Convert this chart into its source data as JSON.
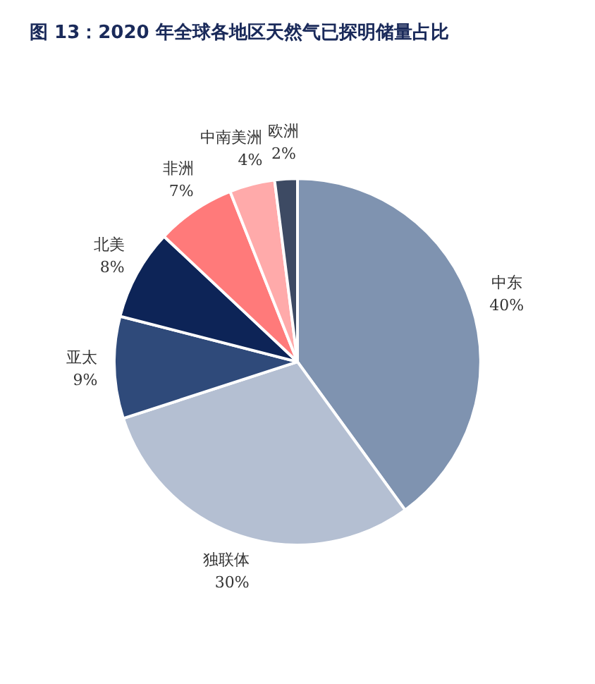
{
  "chart_data": {
    "type": "pie",
    "title": "图 13：2020 年全球各地区天然气已探明储量占比",
    "categories": [
      "中东",
      "独联体",
      "亚太",
      "北美",
      "非洲",
      "中南美洲",
      "欧洲"
    ],
    "values": [
      40,
      30,
      9,
      8,
      7,
      4,
      2
    ],
    "value_labels": [
      "40%",
      "30%",
      "9%",
      "8%",
      "7%",
      "4%",
      "2%"
    ],
    "colors": [
      "#7f93b0",
      "#b4bfd2",
      "#2f4a7a",
      "#0d2457",
      "#ff7a7a",
      "#ffaaaa",
      "#3d4a63"
    ],
    "legend": false
  }
}
